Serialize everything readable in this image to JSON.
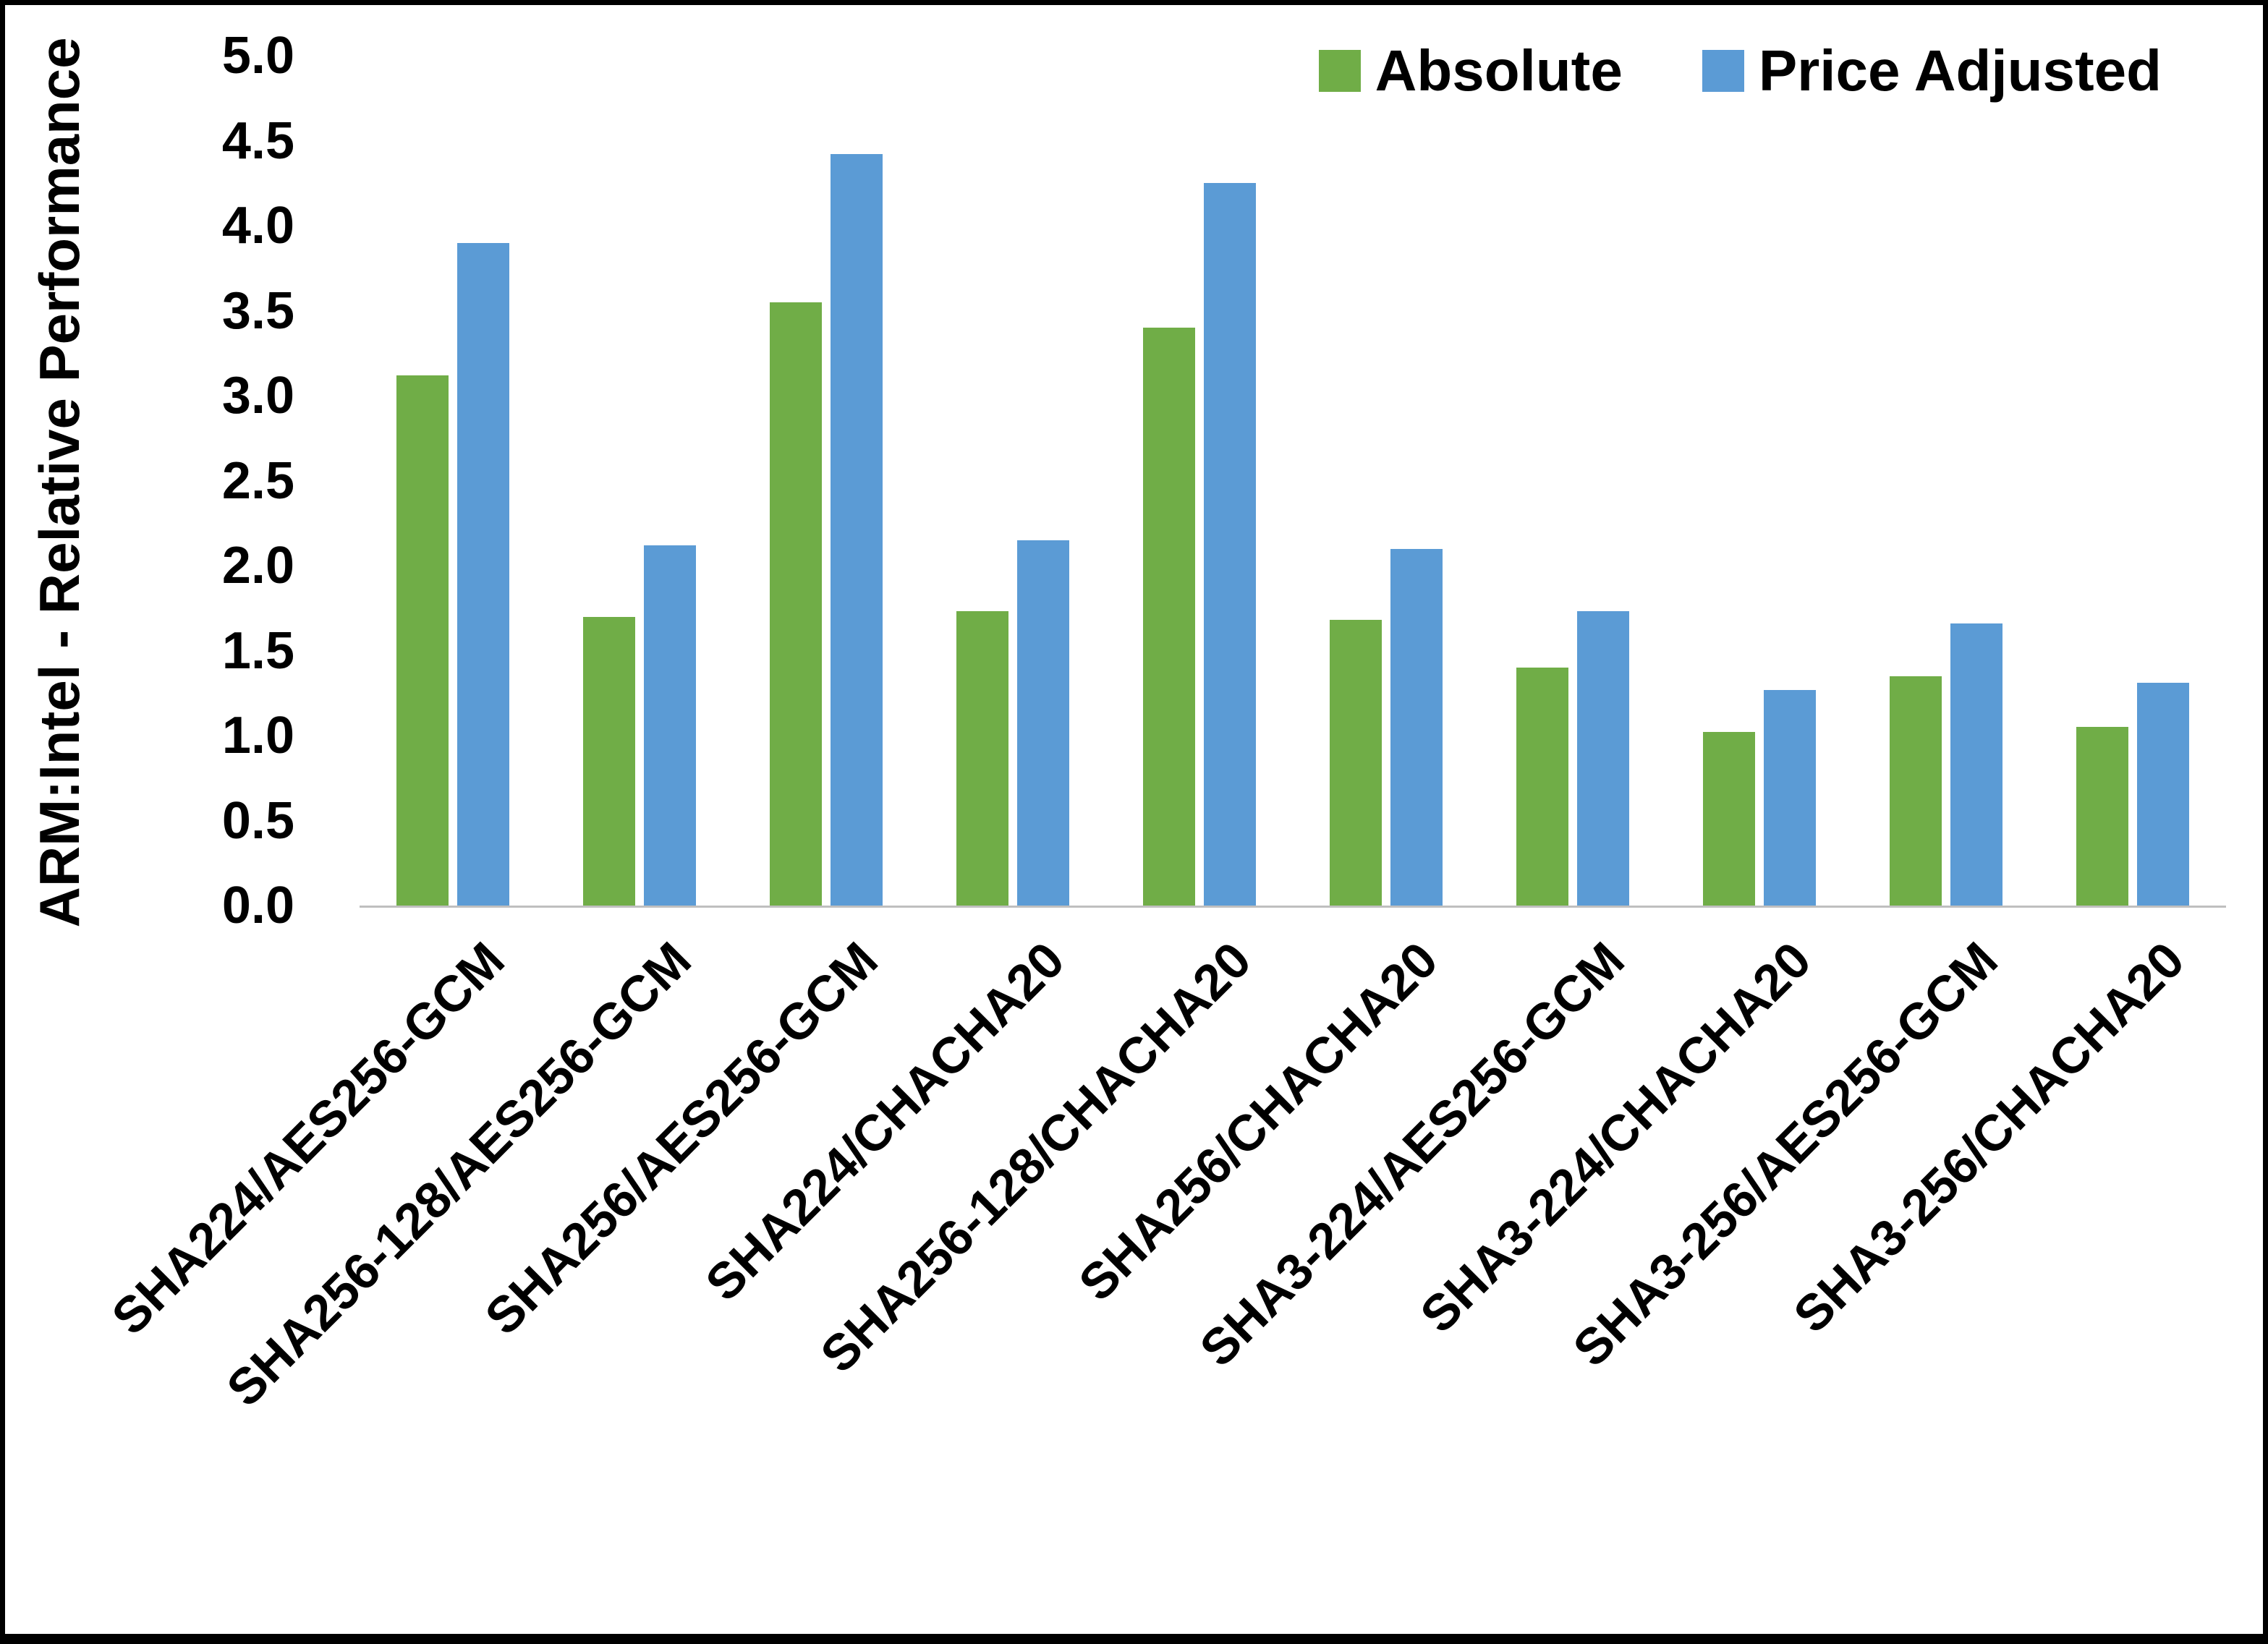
{
  "chart_data": {
    "type": "bar",
    "title": "",
    "xlabel": "",
    "ylabel": "ARM:Intel - Relative Performance",
    "ylim": [
      0,
      5
    ],
    "ytick_step": 0.5,
    "grid": false,
    "legend_position": "top-right",
    "categories": [
      "SHA224/AES256-GCM",
      "SHA256-128/AES256-GCM",
      "SHA256/AES256-GCM",
      "SHA224/CHACHA20",
      "SHA256-128/CHACHA20",
      "SHA256/CHACHA20",
      "SHA3-224/AES256-GCM",
      "SHA3-224/CHACHA20",
      "SHA3-256/AES256-GCM",
      "SHA3-256/CHACHA20"
    ],
    "series": [
      {
        "name": "Absolute",
        "color": "#70AD47",
        "values": [
          3.12,
          1.7,
          3.55,
          1.73,
          3.4,
          1.68,
          1.4,
          1.02,
          1.35,
          1.05
        ]
      },
      {
        "name": "Price Adjusted",
        "color": "#5B9BD5",
        "values": [
          3.9,
          2.12,
          4.42,
          2.15,
          4.25,
          2.1,
          1.73,
          1.27,
          1.66,
          1.31
        ]
      }
    ]
  },
  "colors": {
    "background": "#FFFFFF",
    "border": "#000000",
    "axis_line": "#BFBFBF",
    "text": "#000000"
  }
}
